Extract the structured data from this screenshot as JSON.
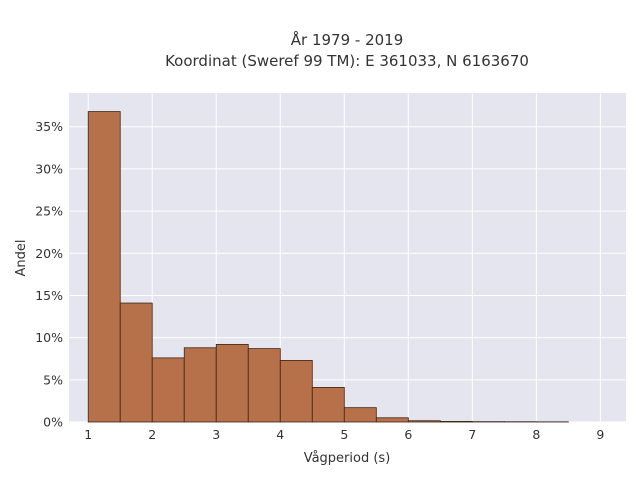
{
  "chart_data": {
    "type": "bar",
    "title_lines": [
      "År 1979 - 2019",
      "Koordinat (Sweref 99 TM): E 361033, N 6163670"
    ],
    "xlabel": "Vågperiod (s)",
    "ylabel": "Andel",
    "xlim": [
      0.7,
      9.4
    ],
    "ylim": [
      0,
      0.39
    ],
    "x_ticks": [
      1,
      2,
      3,
      4,
      5,
      6,
      7,
      8,
      9
    ],
    "x_tick_labels": [
      "1",
      "2",
      "3",
      "4",
      "5",
      "6",
      "7",
      "8",
      "9"
    ],
    "y_ticks": [
      0,
      0.05,
      0.1,
      0.15,
      0.2,
      0.25,
      0.3,
      0.35
    ],
    "y_tick_labels": [
      "0%",
      "5%",
      "10%",
      "15%",
      "20%",
      "25%",
      "30%",
      "35%"
    ],
    "bin_edges": [
      1.0,
      1.5,
      2.0,
      2.5,
      3.0,
      3.5,
      4.0,
      4.5,
      5.0,
      5.5,
      6.0,
      6.5,
      7.0,
      7.5,
      8.0,
      8.5
    ],
    "values": [
      0.368,
      0.141,
      0.076,
      0.088,
      0.092,
      0.087,
      0.073,
      0.041,
      0.017,
      0.005,
      0.0015,
      0.0007,
      0.0004,
      0.0003,
      0.0002
    ],
    "grid": true,
    "bar_color": "#b7714a",
    "bar_edge_color": "#3d2414",
    "plot_background": "#e5e5ef",
    "grid_color": "#ffffff"
  }
}
